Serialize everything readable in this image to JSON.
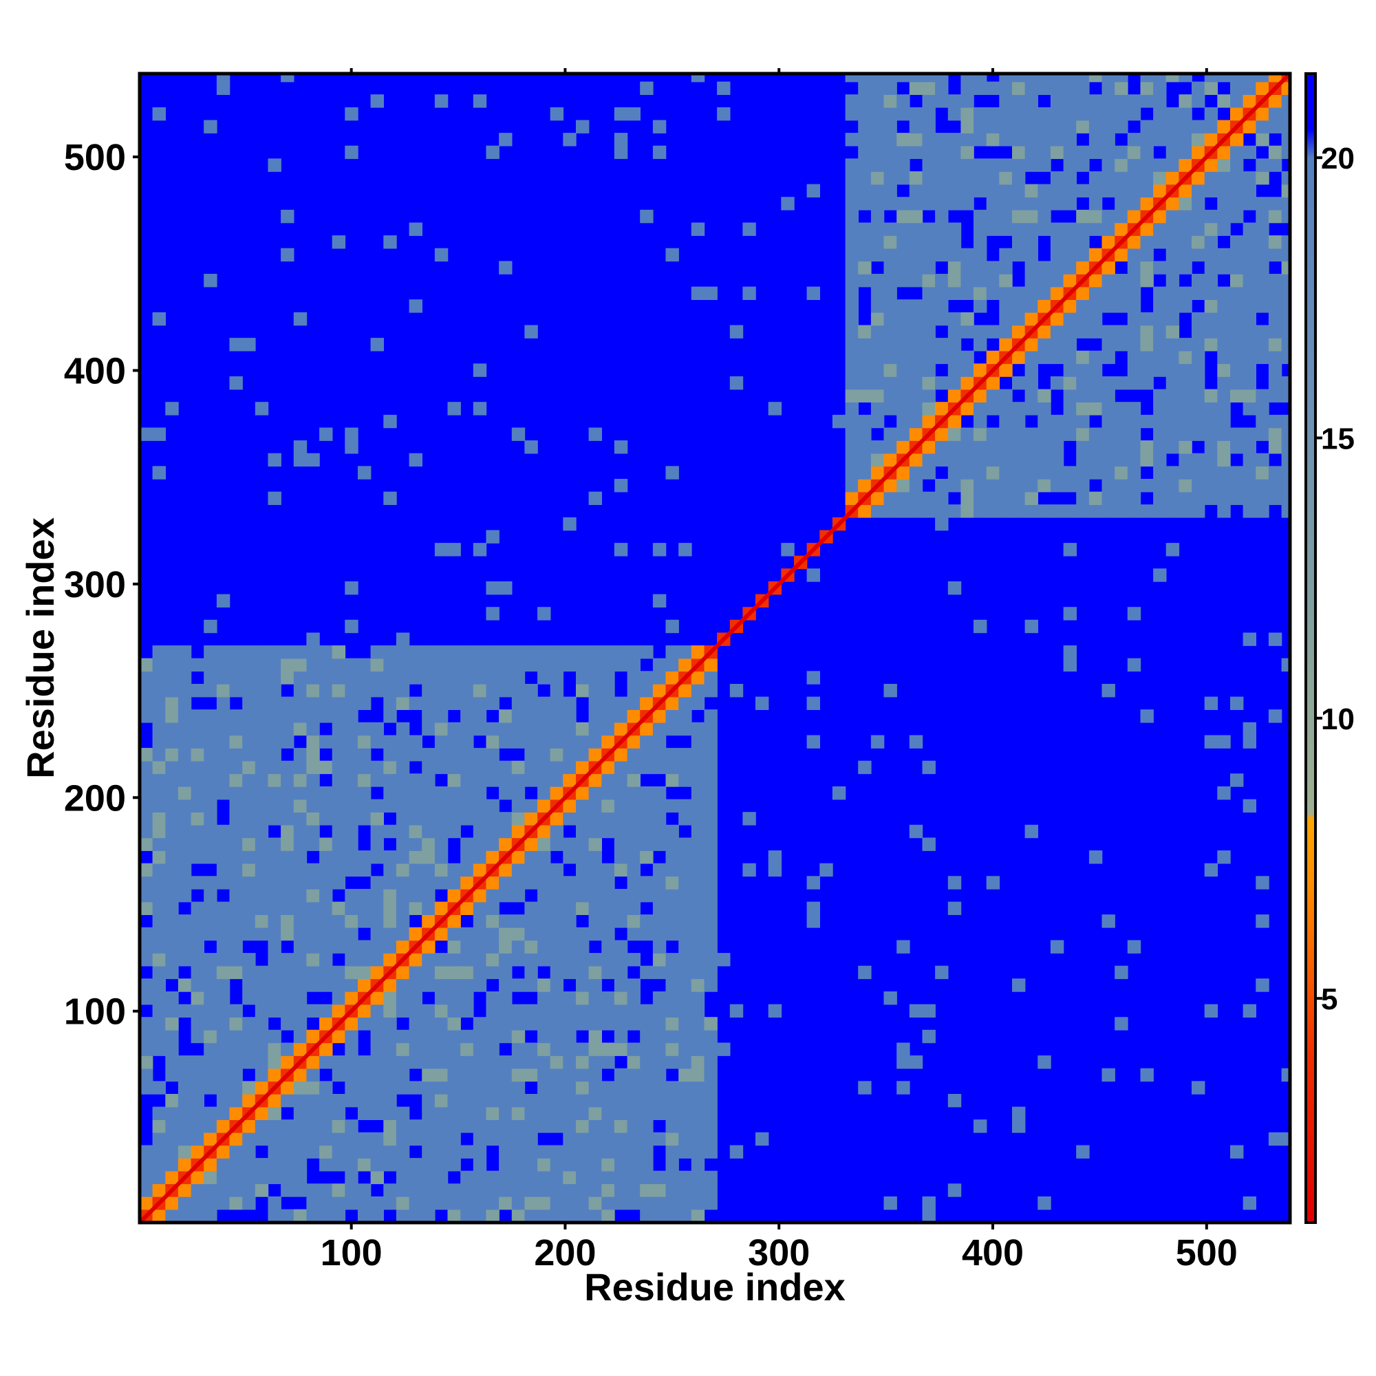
{
  "chart_data": {
    "type": "heatmap",
    "title": "",
    "xlabel": "Residue index",
    "ylabel": "Residue index",
    "xlim": [
      1,
      539
    ],
    "ylim": [
      1,
      539
    ],
    "x_ticks": [
      100,
      200,
      300,
      400,
      500
    ],
    "y_ticks": [
      100,
      200,
      300,
      400,
      500
    ],
    "x_tick_labels": [
      "100",
      "200",
      "300",
      "400",
      "500"
    ],
    "y_tick_labels": [
      "100",
      "200",
      "300",
      "400",
      "500"
    ],
    "colorbar": {
      "range": [
        1,
        21.5
      ],
      "ticks": [
        5,
        10,
        15,
        20
      ],
      "tick_labels": [
        "5",
        "10",
        "15",
        "20"
      ],
      "stops": [
        {
          "value": 1,
          "color": "#e00000"
        },
        {
          "value": 4,
          "color": "#f03000"
        },
        {
          "value": 7,
          "color": "#ff8c00"
        },
        {
          "value": 8.2,
          "color": "#ffa500"
        },
        {
          "value": 8.3,
          "color": "#a0b090"
        },
        {
          "value": 12,
          "color": "#7fa0a0"
        },
        {
          "value": 16,
          "color": "#6a8fb8"
        },
        {
          "value": 20,
          "color": "#5580c0"
        },
        {
          "value": 20.5,
          "color": "#0000ff"
        },
        {
          "value": 21.5,
          "color": "#0000ff"
        }
      ]
    },
    "matrix_description": "symmetric residue distance map",
    "domains": [
      {
        "start": 1,
        "end": 270
      },
      {
        "start": 330,
        "end": 539
      }
    ],
    "colors": {
      "background": "#0000ff",
      "near": "#e00000",
      "mid": "#ffa500",
      "far": "#5b85b8"
    }
  }
}
